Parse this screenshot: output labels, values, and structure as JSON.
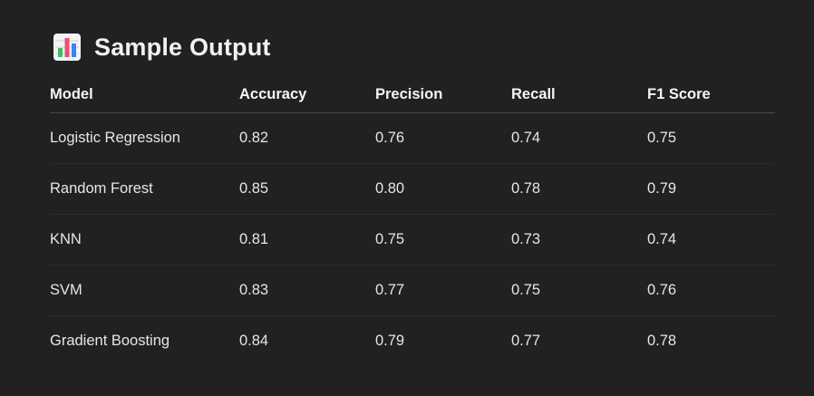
{
  "heading": {
    "icon": "bar-chart-icon",
    "title": "Sample Output"
  },
  "table": {
    "columns": [
      "Model",
      "Accuracy",
      "Precision",
      "Recall",
      "F1 Score"
    ],
    "rows": [
      [
        "Logistic Regression",
        "0.82",
        "0.76",
        "0.74",
        "0.75"
      ],
      [
        "Random Forest",
        "0.85",
        "0.80",
        "0.78",
        "0.79"
      ],
      [
        "KNN",
        "0.81",
        "0.75",
        "0.73",
        "0.74"
      ],
      [
        "SVM",
        "0.83",
        "0.77",
        "0.75",
        "0.76"
      ],
      [
        "Gradient Boosting",
        "0.84",
        "0.79",
        "0.77",
        "0.78"
      ]
    ]
  },
  "colors": {
    "background": "#212121",
    "text": "#ececec",
    "icon_bars": [
      "#3fbf5f",
      "#e8507a",
      "#3b82f6"
    ]
  }
}
